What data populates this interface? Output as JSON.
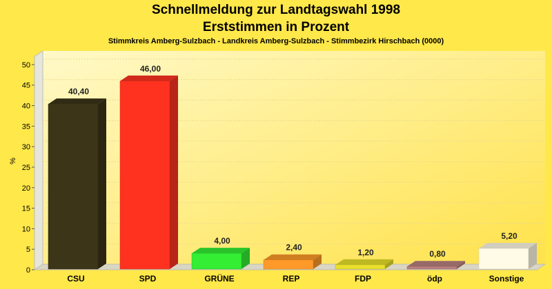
{
  "titles": {
    "line1": "Schnellmeldung zur Landtagswahl 1998",
    "line2": "Erststimmen in Prozent",
    "subtitle": "Stimmkreis Amberg-Sulzbach - Landkreis Amberg-Sulzbach - Stimmbezirk Hirschbach (0000)"
  },
  "chart_data": {
    "type": "bar",
    "title": "Schnellmeldung zur Landtagswahl 1998 Erststimmen in Prozent",
    "subtitle": "Stimmkreis Amberg-Sulzbach - Landkreis Amberg-Sulzbach - Stimmbezirk Hirschbach (0000)",
    "xlabel": "",
    "ylabel": "%",
    "ylim": [
      0,
      52
    ],
    "yticks": [
      0,
      5,
      10,
      15,
      20,
      25,
      30,
      35,
      40,
      45,
      50
    ],
    "grid": true,
    "categories": [
      "CSU",
      "SPD",
      "GRÜNE",
      "REP",
      "FDP",
      "ödp",
      "Sonstige"
    ],
    "values": [
      40.4,
      46.0,
      4.0,
      2.4,
      1.2,
      0.8,
      5.2
    ],
    "value_labels": [
      "40,40",
      "46,00",
      "4,00",
      "2,40",
      "1,20",
      "0,80",
      "5,20"
    ],
    "colors": [
      "#3d3518",
      "#ff3220",
      "#33ee33",
      "#ff9a2a",
      "#e8e02a",
      "#b88080",
      "#fffbe6"
    ]
  }
}
